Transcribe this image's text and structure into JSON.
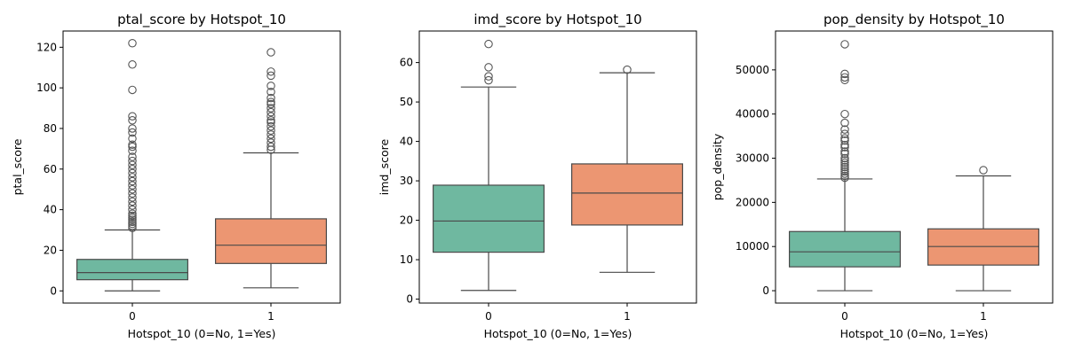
{
  "palette": {
    "series_0": "#6fb8a0",
    "series_1": "#ec9672",
    "line": "#4a4a4a",
    "outlier": "#555555"
  },
  "chart_data": [
    {
      "type": "box",
      "title": "ptal_score by Hotspot_10",
      "xlabel": "Hotspot_10 (0=No, 1=Yes)",
      "ylabel": "ptal_score",
      "categories": [
        "0",
        "1"
      ],
      "ylim": [
        -6,
        128
      ],
      "yticks": [
        0,
        20,
        40,
        60,
        80,
        100,
        120
      ],
      "boxes": [
        {
          "category": "0",
          "whisker_low": 0,
          "q1": 5.5,
          "median": 9,
          "q3": 15.5,
          "whisker_high": 30,
          "outliers": [
            31,
            32,
            33,
            34,
            35,
            36,
            37,
            38,
            40,
            42,
            44,
            46,
            48,
            50,
            52,
            54,
            56,
            58,
            60,
            62,
            64,
            66,
            69,
            71,
            72,
            75,
            78,
            80,
            84,
            86,
            99,
            111.5,
            122
          ]
        },
        {
          "category": "1",
          "whisker_low": 1.5,
          "q1": 13.5,
          "median": 22.5,
          "q3": 35.5,
          "whisker_high": 68,
          "outliers": [
            69.5,
            71,
            73,
            75,
            77,
            79,
            81,
            83,
            84,
            86,
            88,
            90,
            92,
            93,
            95,
            98,
            101,
            106,
            108,
            117.5
          ]
        }
      ]
    },
    {
      "type": "box",
      "title": "imd_score by Hotspot_10",
      "xlabel": "Hotspot_10 (0=No, 1=Yes)",
      "ylabel": "imd_score",
      "categories": [
        "0",
        "1"
      ],
      "ylim": [
        -1,
        68
      ],
      "yticks": [
        0,
        10,
        20,
        30,
        40,
        50,
        60
      ],
      "boxes": [
        {
          "category": "0",
          "whisker_low": 2.2,
          "q1": 11.9,
          "median": 19.8,
          "q3": 28.9,
          "whisker_high": 53.8,
          "outliers": [
            55.5,
            56.5,
            58.8,
            64.7
          ]
        },
        {
          "category": "1",
          "whisker_low": 6.8,
          "q1": 18.8,
          "median": 26.9,
          "q3": 34.3,
          "whisker_high": 57.4,
          "outliers": [
            58.2
          ]
        }
      ]
    },
    {
      "type": "box",
      "title": "pop_density by Hotspot_10",
      "xlabel": "Hotspot_10 (0=No, 1=Yes)",
      "ylabel": "pop_density",
      "categories": [
        "0",
        "1"
      ],
      "ylim": [
        -2800,
        58800
      ],
      "yticks": [
        0,
        10000,
        20000,
        30000,
        40000,
        50000
      ],
      "boxes": [
        {
          "category": "0",
          "whisker_low": 0,
          "q1": 5400,
          "median": 8800,
          "q3": 13400,
          "whisker_high": 25300,
          "outliers": [
            25600,
            26000,
            26500,
            27000,
            27500,
            28000,
            28500,
            29000,
            29500,
            30000,
            31000,
            31500,
            32500,
            33000,
            34000,
            34500,
            35500,
            36500,
            38000,
            40000,
            47700,
            48300,
            49100,
            55800
          ]
        },
        {
          "category": "1",
          "whisker_low": 0,
          "q1": 5800,
          "median": 10000,
          "q3": 14000,
          "whisker_high": 26000,
          "outliers": [
            27300
          ]
        }
      ]
    }
  ]
}
